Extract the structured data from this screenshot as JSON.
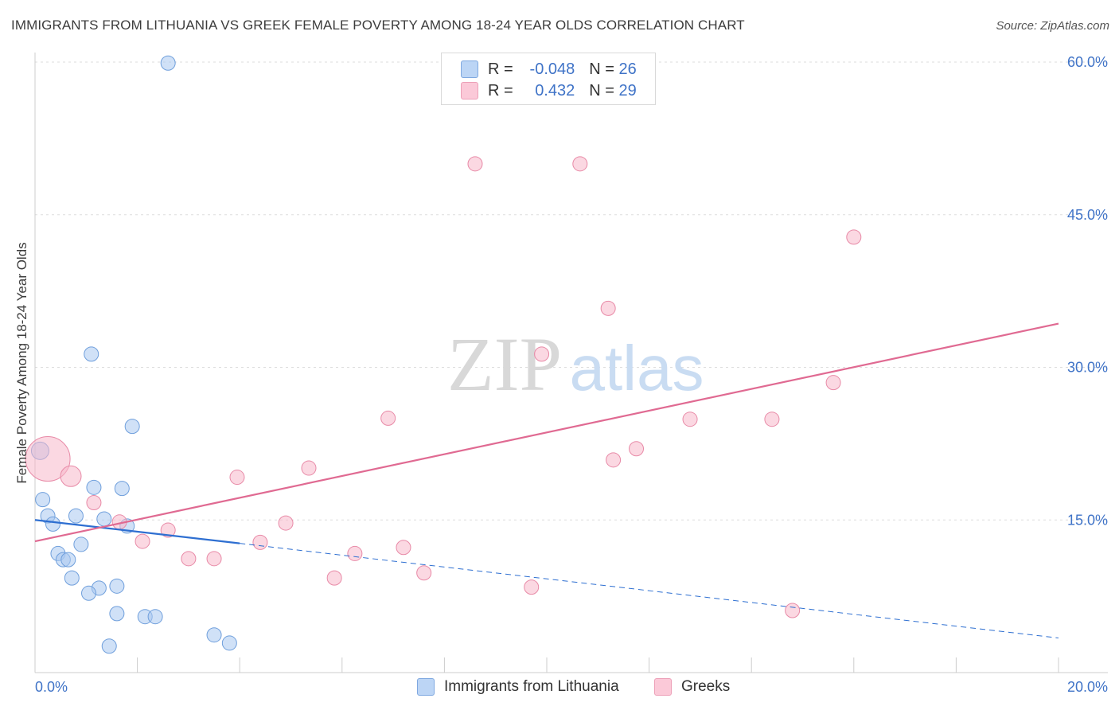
{
  "header": {
    "title": "IMMIGRANTS FROM LITHUANIA VS GREEK FEMALE POVERTY AMONG 18-24 YEAR OLDS CORRELATION CHART",
    "source": "Source: ZipAtlas.com"
  },
  "watermark": {
    "zip": "ZIP",
    "atlas": "atlas"
  },
  "legend": {
    "rows": [
      {
        "r_label": "R = ",
        "r_value": "-0.048",
        "n_label": "N = ",
        "n_value": "26"
      },
      {
        "r_label": "R = ",
        "r_value": "0.432",
        "n_label": "N = ",
        "n_value": "29"
      }
    ]
  },
  "colors": {
    "blue_fill": "#a9c8f0",
    "blue_stroke": "#6f9fdc",
    "blue_line": "#2e6fd1",
    "pink_fill": "#f7b8cb",
    "pink_stroke": "#e88aa7",
    "pink_line": "#e06a92",
    "axis_text": "#3f73c7",
    "grid": "#dddddd"
  },
  "chart_data": {
    "type": "scatter",
    "title": "IMMIGRANTS FROM LITHUANIA VS GREEK FEMALE POVERTY AMONG 18-24 YEAR OLDS CORRELATION CHART",
    "xlabel": "",
    "ylabel": "Female Poverty Among 18-24 Year Olds",
    "xlim": [
      0,
      20
    ],
    "ylim": [
      0,
      60
    ],
    "x_tick_labels": [
      "0.0%",
      "20.0%"
    ],
    "y_ticks": [
      15,
      30,
      45,
      60
    ],
    "y_tick_labels": [
      "15.0%",
      "30.0%",
      "45.0%",
      "60.0%"
    ],
    "grid": true,
    "series": [
      {
        "name": "Immigrants from Lithuania",
        "color": "#a9c8f0",
        "points": [
          {
            "x": 2.6,
            "y": 59.9
          },
          {
            "x": 1.1,
            "y": 31.3
          },
          {
            "x": 1.9,
            "y": 24.2
          },
          {
            "x": 0.1,
            "y": 21.8
          },
          {
            "x": 1.15,
            "y": 18.2
          },
          {
            "x": 1.7,
            "y": 18.1
          },
          {
            "x": 0.15,
            "y": 17.0
          },
          {
            "x": 0.25,
            "y": 15.4
          },
          {
            "x": 0.8,
            "y": 15.4
          },
          {
            "x": 1.35,
            "y": 15.1
          },
          {
            "x": 0.35,
            "y": 14.6
          },
          {
            "x": 1.8,
            "y": 14.4
          },
          {
            "x": 0.9,
            "y": 12.6
          },
          {
            "x": 0.45,
            "y": 11.7
          },
          {
            "x": 0.55,
            "y": 11.1
          },
          {
            "x": 0.65,
            "y": 11.1
          },
          {
            "x": 0.72,
            "y": 9.3
          },
          {
            "x": 1.25,
            "y": 8.3
          },
          {
            "x": 1.6,
            "y": 8.5
          },
          {
            "x": 1.05,
            "y": 7.8
          },
          {
            "x": 1.6,
            "y": 5.8
          },
          {
            "x": 2.15,
            "y": 5.5
          },
          {
            "x": 2.35,
            "y": 5.5
          },
          {
            "x": 3.5,
            "y": 3.7
          },
          {
            "x": 3.8,
            "y": 2.9
          },
          {
            "x": 1.45,
            "y": 2.6
          }
        ],
        "trend": {
          "x0": 0,
          "y0": 15.0,
          "x1": 4.0,
          "y1": 12.7,
          "dashed_to_x": 20,
          "dashed_to_y": 3.4
        }
      },
      {
        "name": "Greeks",
        "color": "#f7b8cb",
        "points": [
          {
            "x": 8.6,
            "y": 50.0
          },
          {
            "x": 10.65,
            "y": 50.0
          },
          {
            "x": 16.0,
            "y": 42.8
          },
          {
            "x": 11.2,
            "y": 35.8
          },
          {
            "x": 9.9,
            "y": 31.3
          },
          {
            "x": 15.6,
            "y": 28.5
          },
          {
            "x": 6.9,
            "y": 25.0
          },
          {
            "x": 12.8,
            "y": 24.9
          },
          {
            "x": 14.4,
            "y": 24.9
          },
          {
            "x": 11.75,
            "y": 22.0
          },
          {
            "x": 11.3,
            "y": 20.9
          },
          {
            "x": 0.25,
            "y": 21.0
          },
          {
            "x": 5.35,
            "y": 20.1
          },
          {
            "x": 0.7,
            "y": 19.3
          },
          {
            "x": 3.95,
            "y": 19.2
          },
          {
            "x": 1.15,
            "y": 16.7
          },
          {
            "x": 1.65,
            "y": 14.8
          },
          {
            "x": 4.9,
            "y": 14.7
          },
          {
            "x": 2.6,
            "y": 14.0
          },
          {
            "x": 2.1,
            "y": 12.9
          },
          {
            "x": 4.4,
            "y": 12.8
          },
          {
            "x": 7.2,
            "y": 12.3
          },
          {
            "x": 6.25,
            "y": 11.7
          },
          {
            "x": 3.0,
            "y": 11.2
          },
          {
            "x": 3.5,
            "y": 11.2
          },
          {
            "x": 7.6,
            "y": 9.8
          },
          {
            "x": 5.85,
            "y": 9.3
          },
          {
            "x": 9.7,
            "y": 8.4
          },
          {
            "x": 14.8,
            "y": 6.1
          }
        ],
        "trend": {
          "x0": 0,
          "y0": 12.9,
          "x1": 20,
          "y1": 34.3
        }
      }
    ]
  }
}
